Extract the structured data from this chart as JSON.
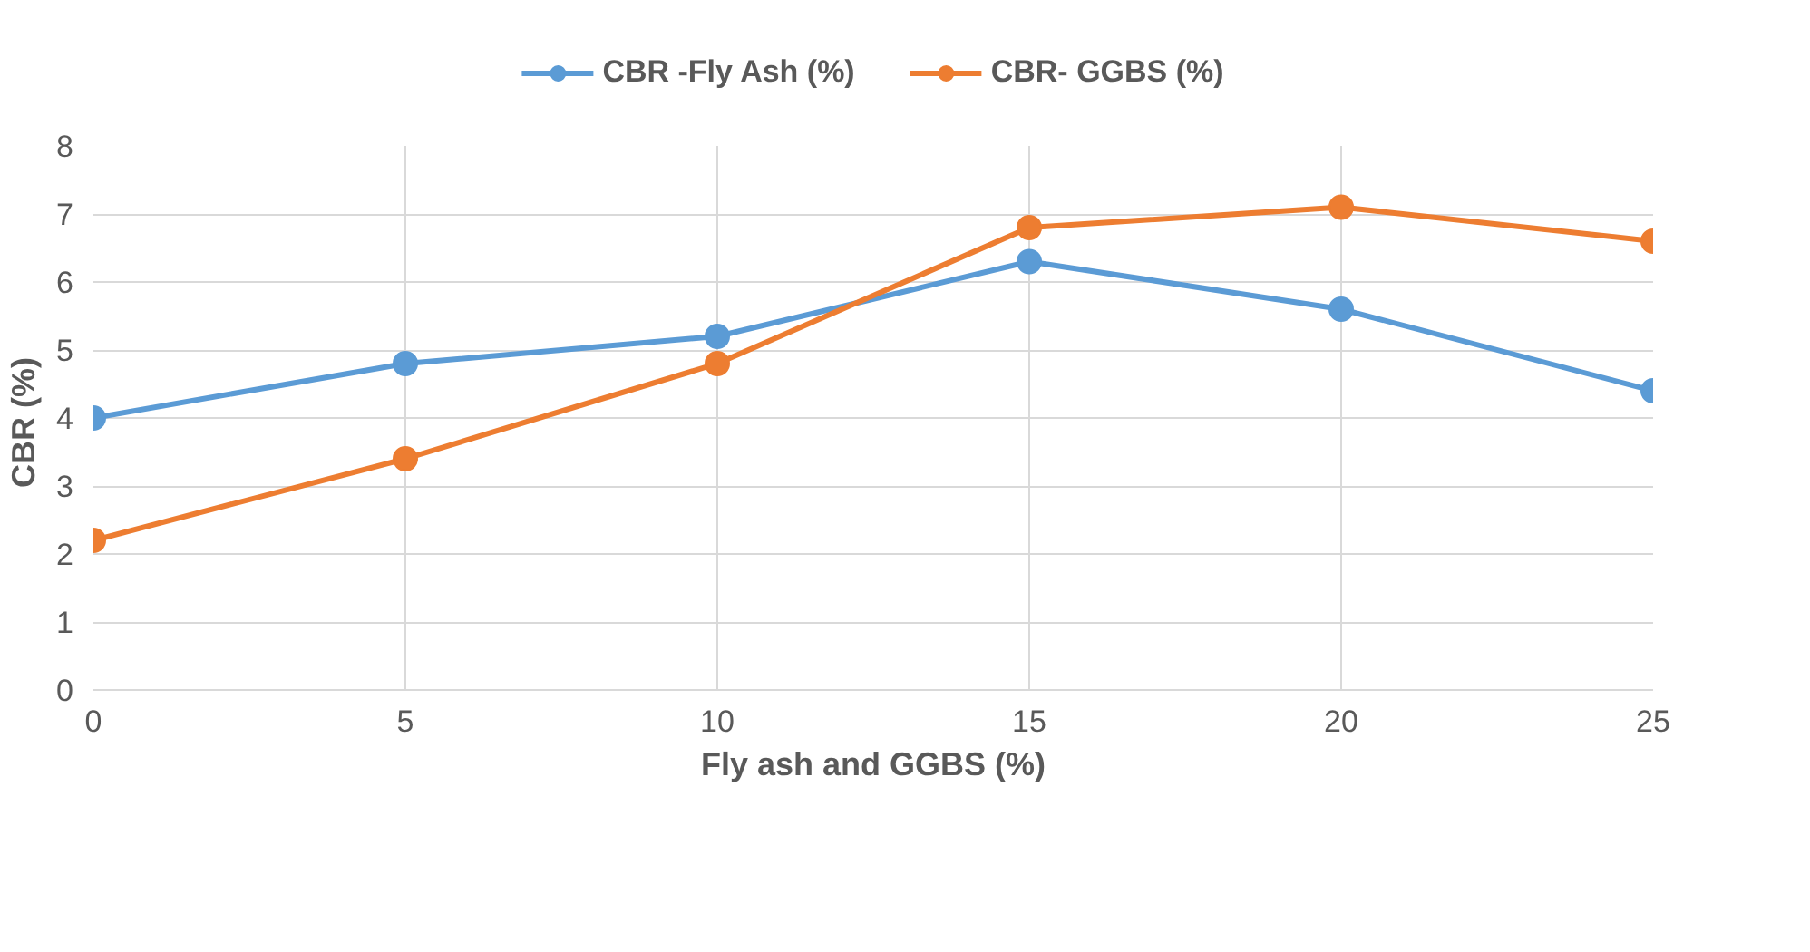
{
  "chart_data": {
    "type": "line",
    "xlabel": "Fly ash and GGBS (%)",
    "ylabel": "CBR  (%)",
    "x": [
      0,
      5,
      10,
      15,
      20,
      25
    ],
    "series": [
      {
        "name": "CBR -Fly Ash (%)",
        "color": "#5b9bd5",
        "values": [
          4.0,
          4.8,
          5.2,
          6.3,
          5.6,
          4.4
        ]
      },
      {
        "name": "CBR- GGBS (%)",
        "color": "#ed7d31",
        "values": [
          2.2,
          3.4,
          4.8,
          6.8,
          7.1,
          6.6
        ]
      }
    ],
    "xlim": [
      0,
      25
    ],
    "xticks": [
      0,
      5,
      10,
      15,
      20,
      25
    ],
    "ylim": [
      0,
      8
    ],
    "yticks": [
      0,
      1,
      2,
      3,
      4,
      5,
      6,
      7,
      8
    ],
    "grid": true,
    "legend": "top",
    "marker": "circle",
    "line_style": "solid"
  }
}
